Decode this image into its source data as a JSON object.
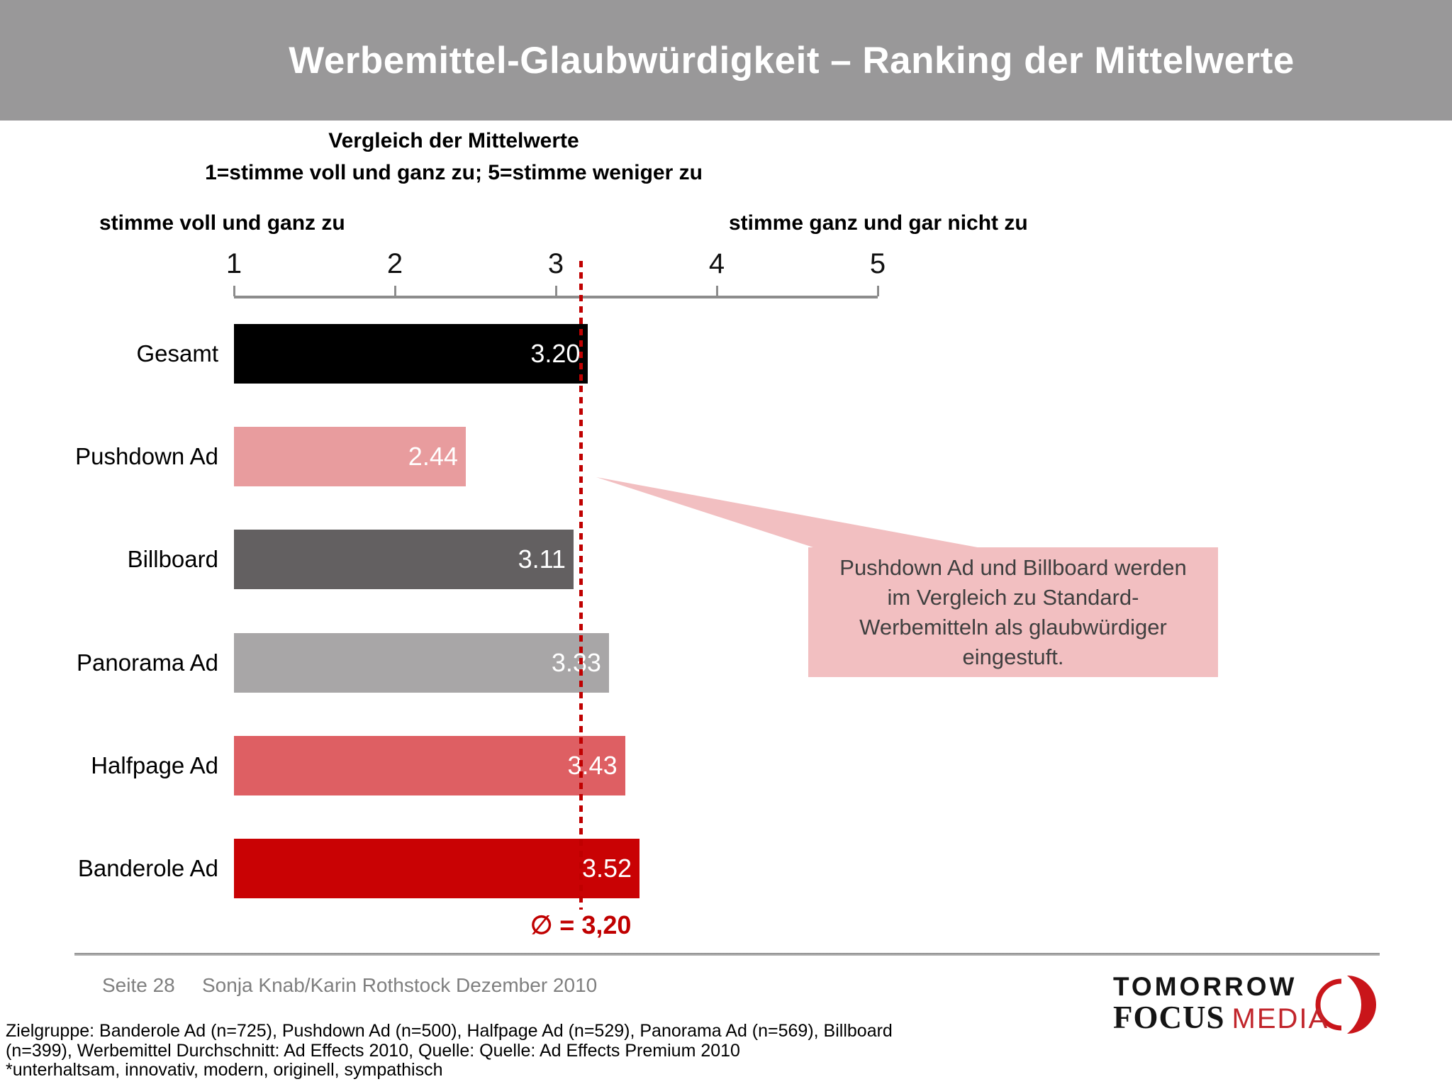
{
  "header": {
    "title": "Werbemittel-Glaubwürdigkeit – Ranking der Mittelwerte",
    "bg_color": "#999899"
  },
  "chart_data": {
    "type": "bar",
    "orientation": "horizontal",
    "title": "Vergleich der Mittelwerte",
    "subtitle": "1=stimme voll und ganz zu; 5=stimme weniger zu",
    "axis_label_left": "stimme voll und ganz zu",
    "axis_label_right": "stimme ganz und gar nicht zu",
    "categories": [
      "Gesamt",
      "Pushdown Ad",
      "Billboard",
      "Panorama Ad",
      "Halfpage Ad",
      "Banderole Ad"
    ],
    "values": [
      3.2,
      2.44,
      3.11,
      3.33,
      3.43,
      3.52
    ],
    "value_labels": [
      "3.20",
      "2.44",
      "3.11",
      "3.33",
      "3.43",
      "3.52"
    ],
    "bar_colors": [
      "#000000",
      "#e89c9e",
      "#636061",
      "#a8a6a7",
      "#de5f63",
      "#c90204"
    ],
    "xlim": [
      1,
      5
    ],
    "ticks": [
      1,
      2,
      3,
      4,
      5
    ],
    "grid": false,
    "axis_color": "#8c8c8c",
    "mean_line": {
      "value": 3.2,
      "position_value": 3.155,
      "label": "∅ = 3,20",
      "style": "dotted",
      "color": "#c00000"
    }
  },
  "callout": {
    "text": "Pushdown Ad und Billboard werden\nim Vergleich zu Standard-\nWerbemitteln als glaubwürdiger\neingestuft.",
    "bg_color": "#f2bfc1"
  },
  "footer": {
    "page": "Seite 28",
    "authors": "Sonja Knab/Karin Rothstock Dezember 2010"
  },
  "logo": {
    "line1": "TOMORROW",
    "focus": "FOCUS",
    "media": "MEDIA",
    "crescent_icon": "red-crescent",
    "media_color": "#c1252b",
    "crescent_color": "#c9151a"
  },
  "notes": {
    "text": "Zielgruppe: Banderole Ad (n=725), Pushdown Ad (n=500), Halfpage Ad (n=529), Panorama Ad (n=569), Billboard\n(n=399), Werbemittel Durchschnitt: Ad Effects 2010, Quelle: Quelle: Ad Effects Premium 2010\n*unterhaltsam, innovativ, modern, originell, sympathisch"
  }
}
